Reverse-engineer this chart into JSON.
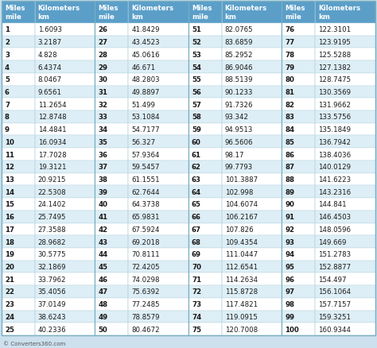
{
  "header_bg": "#5b9fc9",
  "header_text": "#ffffff",
  "row_bg_white": "#ffffff",
  "row_bg_blue": "#ddeef6",
  "bg_color": "#cce0ee",
  "text_color": "#1a1a1a",
  "footer_text": "© Converters360.com",
  "col_headers": [
    "Miles\nmile",
    "Kilometers\nkm",
    "Miles\nmile",
    "Kilometers\nkm",
    "Miles\nmile",
    "Kilometers\nkm",
    "Miles\nmile",
    "Kilometers\nkm"
  ],
  "col_widths_rel": [
    0.62,
    1.13,
    0.62,
    1.13,
    0.62,
    1.13,
    0.62,
    1.13
  ],
  "data": [
    [
      1,
      "1.6093",
      26,
      "41.8429",
      51,
      "82.0765",
      76,
      "122.3101"
    ],
    [
      2,
      "3.2187",
      27,
      "43.4523",
      52,
      "83.6859",
      77,
      "123.9195"
    ],
    [
      3,
      "4.828",
      28,
      "45.0616",
      53,
      "85.2952",
      78,
      "125.5288"
    ],
    [
      4,
      "6.4374",
      29,
      "46.671",
      54,
      "86.9046",
      79,
      "127.1382"
    ],
    [
      5,
      "8.0467",
      30,
      "48.2803",
      55,
      "88.5139",
      80,
      "128.7475"
    ],
    [
      6,
      "9.6561",
      31,
      "49.8897",
      56,
      "90.1233",
      81,
      "130.3569"
    ],
    [
      7,
      "11.2654",
      32,
      "51.499",
      57,
      "91.7326",
      82,
      "131.9662"
    ],
    [
      8,
      "12.8748",
      33,
      "53.1084",
      58,
      "93.342",
      83,
      "133.5756"
    ],
    [
      9,
      "14.4841",
      34,
      "54.7177",
      59,
      "94.9513",
      84,
      "135.1849"
    ],
    [
      10,
      "16.0934",
      35,
      "56.327",
      60,
      "96.5606",
      85,
      "136.7942"
    ],
    [
      11,
      "17.7028",
      36,
      "57.9364",
      61,
      "98.17",
      86,
      "138.4036"
    ],
    [
      12,
      "19.3121",
      37,
      "59.5457",
      62,
      "99.7793",
      87,
      "140.0129"
    ],
    [
      13,
      "20.9215",
      38,
      "61.1551",
      63,
      "101.3887",
      88,
      "141.6223"
    ],
    [
      14,
      "22.5308",
      39,
      "62.7644",
      64,
      "102.998",
      89,
      "143.2316"
    ],
    [
      15,
      "24.1402",
      40,
      "64.3738",
      65,
      "104.6074",
      90,
      "144.841"
    ],
    [
      16,
      "25.7495",
      41,
      "65.9831",
      66,
      "106.2167",
      91,
      "146.4503"
    ],
    [
      17,
      "27.3588",
      42,
      "67.5924",
      67,
      "107.826",
      92,
      "148.0596"
    ],
    [
      18,
      "28.9682",
      43,
      "69.2018",
      68,
      "109.4354",
      93,
      "149.669"
    ],
    [
      19,
      "30.5775",
      44,
      "70.8111",
      69,
      "111.0447",
      94,
      "151.2783"
    ],
    [
      20,
      "32.1869",
      45,
      "72.4205",
      70,
      "112.6541",
      95,
      "152.8877"
    ],
    [
      21,
      "33.7962",
      46,
      "74.0298",
      71,
      "114.2634",
      96,
      "154.497"
    ],
    [
      22,
      "35.4056",
      47,
      "75.6392",
      72,
      "115.8728",
      97,
      "156.1064"
    ],
    [
      23,
      "37.0149",
      48,
      "77.2485",
      73,
      "117.4821",
      98,
      "157.7157"
    ],
    [
      24,
      "38.6243",
      49,
      "78.8579",
      74,
      "119.0915",
      99,
      "159.3251"
    ],
    [
      25,
      "40.2336",
      50,
      "80.4672",
      75,
      "120.7008",
      100,
      "160.9344"
    ]
  ]
}
